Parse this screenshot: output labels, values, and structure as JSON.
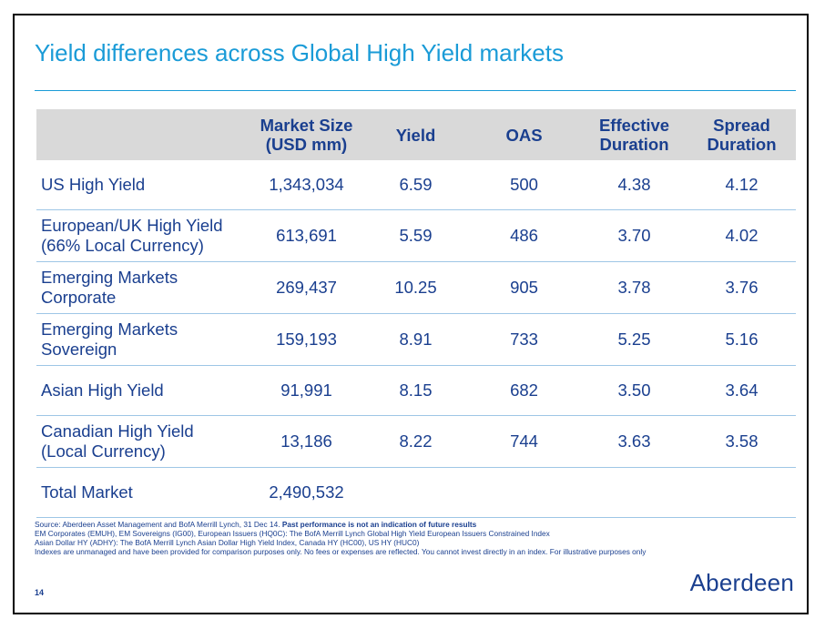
{
  "title": "Yield differences across Global High Yield markets",
  "table": {
    "headers": [
      {
        "line1": "",
        "line2": ""
      },
      {
        "line1": "Market Size",
        "line2": "(USD mm)"
      },
      {
        "line1": "Yield",
        "line2": ""
      },
      {
        "line1": "OAS",
        "line2": ""
      },
      {
        "line1": "Effective",
        "line2": "Duration"
      },
      {
        "line1": "Spread",
        "line2": "Duration"
      }
    ],
    "rows": [
      {
        "name1": "US High Yield",
        "name2": "",
        "size": "1,343,034",
        "yield": "6.59",
        "oas": "500",
        "eff": "4.38",
        "spread": "4.12"
      },
      {
        "name1": "European/UK High Yield",
        "name2": "(66% Local Currency)",
        "size": "613,691",
        "yield": "5.59",
        "oas": "486",
        "eff": "3.70",
        "spread": "4.02"
      },
      {
        "name1": "Emerging Markets",
        "name2": "Corporate",
        "size": "269,437",
        "yield": "10.25",
        "oas": "905",
        "eff": "3.78",
        "spread": "3.76"
      },
      {
        "name1": "Emerging Markets",
        "name2": "Sovereign",
        "size": "159,193",
        "yield": "8.91",
        "oas": "733",
        "eff": "5.25",
        "spread": "5.16"
      },
      {
        "name1": "Asian High Yield",
        "name2": "",
        "size": "91,991",
        "yield": "8.15",
        "oas": "682",
        "eff": "3.50",
        "spread": "3.64"
      },
      {
        "name1": "Canadian High Yield",
        "name2": "(Local Currency)",
        "size": "13,186",
        "yield": "8.22",
        "oas": "744",
        "eff": "3.63",
        "spread": "3.58"
      },
      {
        "name1": "Total Market",
        "name2": "",
        "size": "2,490,532",
        "yield": "",
        "oas": "",
        "eff": "",
        "spread": ""
      }
    ]
  },
  "footnotes": {
    "source_prefix": "Source: Aberdeen Asset Management and BofA Merrill Lynch, 31 Dec 14. ",
    "source_bold": "Past performance is not an indication of future results",
    "line2": "EM Corporates (EMUH), EM Sovereigns (IG00), European Issuers (HQ0C): The BofA Merrill Lynch Global High Yield European Issuers Constrained Index",
    "line3": "Asian Dollar HY (ADHY): The BofA Merrill Lynch Asian Dollar High Yield Index, Canada HY (HC00), US HY (HUC0)",
    "line4": "Indexes are unmanaged and have been provided for comparison purposes only. No fees or expenses are reflected. You cannot invest directly in an index. For illustrative purposes only"
  },
  "page_number": "14",
  "logo": "Aberdeen",
  "colors": {
    "title": "#1a9bd7",
    "text": "#1a3f8f",
    "header_bg": "#d9d9d9",
    "row_rule": "#9ec6e6"
  }
}
